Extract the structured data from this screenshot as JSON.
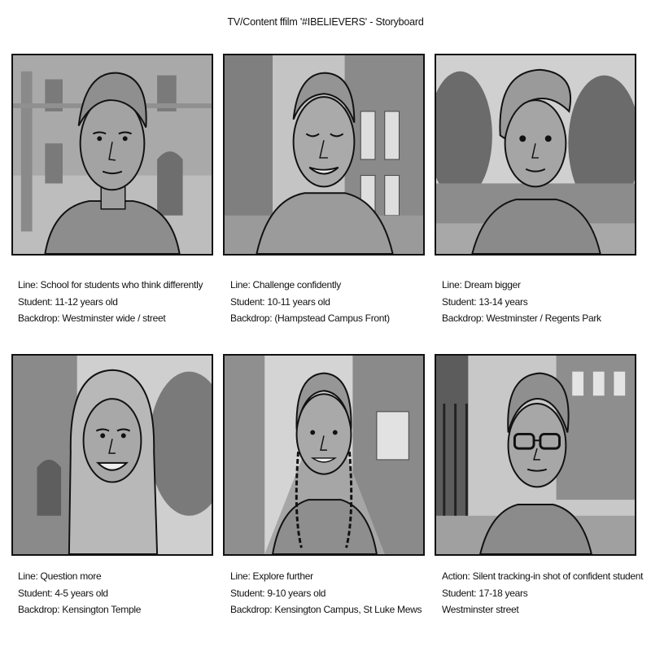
{
  "title": "TV/Content ffilm '#IBELIEVERS' - Storyboard",
  "panels": [
    {
      "line1": "Line: School for students who think differently",
      "line2": "Student: 11-12 years old",
      "line3": "Backdrop: Westminster wide / street"
    },
    {
      "line1": "Line: Challenge confidently",
      "line2": "Student: 10-11 years old",
      "line3": "Backdrop: (Hampstead Campus Front)"
    },
    {
      "line1": "Line: Dream bigger",
      "line2": "Student: 13-14 years",
      "line3": "Backdrop: Westminster / Regents Park"
    },
    {
      "line1": "Line: Question more",
      "line2": "Student: 4-5 years old",
      "line3": "Backdrop:  Kensington Temple"
    },
    {
      "line1": "Line: Explore further",
      "line2": "Student: 9-10 years old",
      "line3": "Backdrop: Kensington Campus, St Luke Mews"
    },
    {
      "line1": "Action: Silent tracking-in shot of confident student",
      "line2": "Student: 17-18 years",
      "line3": "Westminster street"
    }
  ]
}
